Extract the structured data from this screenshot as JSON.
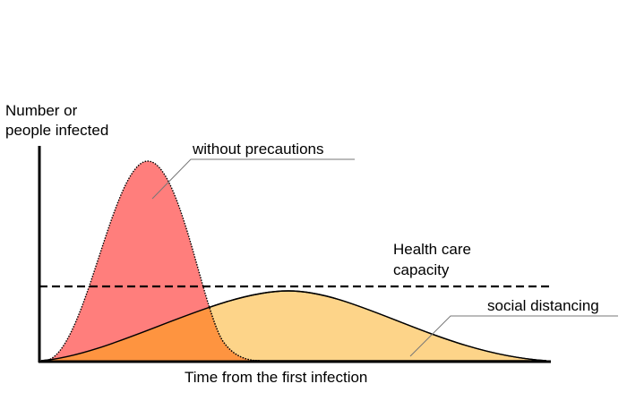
{
  "y_axis_label": {
    "line1": "Number or",
    "line2": "people infected"
  },
  "x_axis_label": "Time from the first infection",
  "annotations": {
    "without_precautions": "without precautions",
    "health_care_capacity_line1": "Health care",
    "health_care_capacity_line2": "capacity",
    "social_distancing": "social distancing"
  },
  "colors": {
    "without_precautions_fill": "#ff7e7c",
    "social_distancing_fill": "#fdd489",
    "overlap_fill": "#fe9440",
    "axis": "#000000",
    "leader_line": "#777777"
  }
}
